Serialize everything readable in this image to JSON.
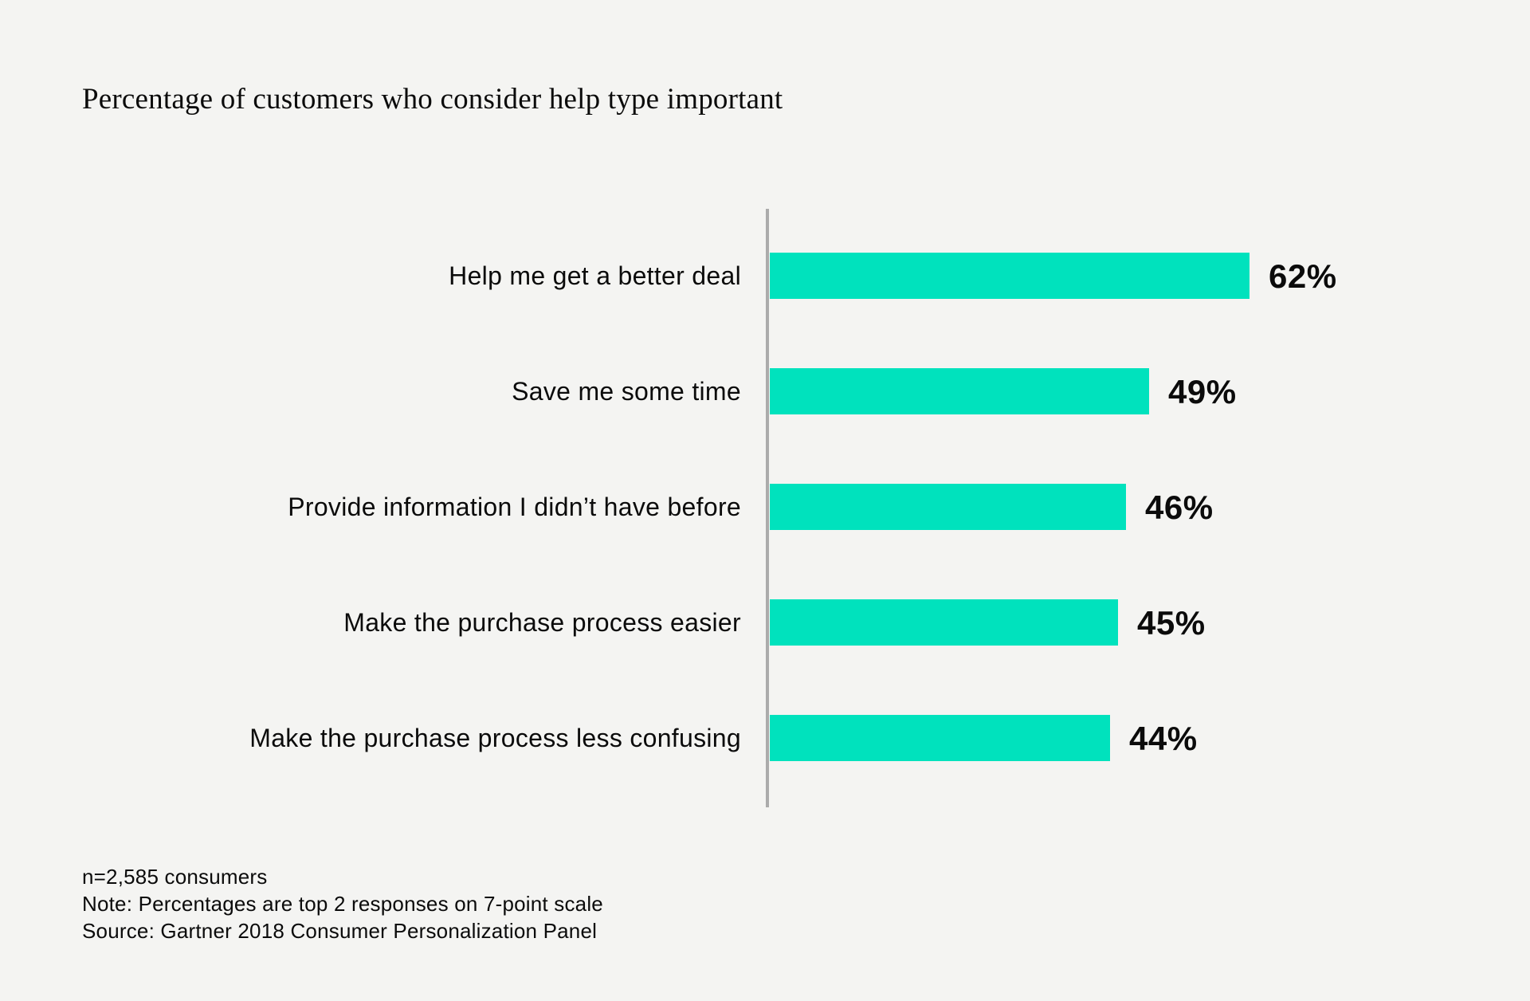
{
  "title": "Percentage of customers who consider help type important",
  "chart_data": {
    "type": "bar",
    "orientation": "horizontal",
    "title": "Percentage of customers who consider help type important",
    "categories": [
      "Help me get a better deal",
      "Save me some time",
      "Provide information I didn’t have before",
      "Make the purchase process easier",
      "Make the purchase process less confusing"
    ],
    "values": [
      62,
      49,
      46,
      45,
      44
    ],
    "value_labels": [
      "62%",
      "49%",
      "46%",
      "45%",
      "44%"
    ],
    "xlabel": "",
    "ylabel": "",
    "xlim": [
      0,
      62
    ],
    "grid": false,
    "legend": false,
    "bar_color": "#00E2BD",
    "axis_line_color": "#ABABAB",
    "text_color": "#0B0B0B",
    "background_color": "#F4F4F2"
  },
  "footer": {
    "sample": "n=2,585 consumers",
    "note": "Note: Percentages are top 2 responses on 7-point scale",
    "source": "Source: Gartner 2018 Consumer Personalization Panel"
  }
}
